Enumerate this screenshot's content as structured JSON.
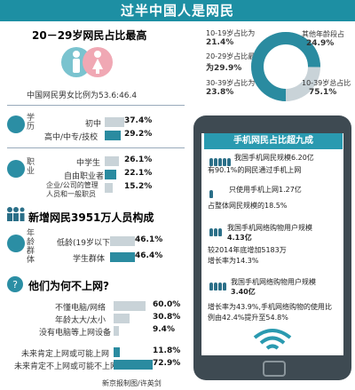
{
  "header": {
    "title": "过半中国人是网民"
  },
  "age_section": {
    "title": "20－29岁网民占比最高",
    "gender_ratio": "中国网民男女比例为53.6:46.4",
    "age_items": [
      {
        "label": "10-19岁占比为",
        "value": "21.4%"
      },
      {
        "label": "20-29岁占比最高",
        "value": "为29.9%"
      },
      {
        "label": "30-39岁占比为",
        "value": "23.8%"
      }
    ],
    "other_label": "其他年龄段占",
    "other_value": "24.9%",
    "range_label": "10-39岁总占比",
    "range_value": "75.1%"
  },
  "education": {
    "category": "学历",
    "items": [
      {
        "label": "初中",
        "value": "37.4%",
        "fraction": 0.374
      },
      {
        "label": "高中/中专/技校",
        "value": "29.2%",
        "fraction": 0.292
      }
    ]
  },
  "occupation": {
    "category": "职业",
    "items": [
      {
        "label": "中学生",
        "value": "26.1%",
        "fraction": 0.261
      },
      {
        "label": "自由职业者",
        "value": "22.1%",
        "fraction": 0.221
      },
      {
        "label": "企业/公司的管理人员和一般职员",
        "value": "15.2%",
        "fraction": 0.152
      }
    ]
  },
  "new_users": {
    "title": "新增网民3951万人员构成",
    "category": "年龄群体",
    "items": [
      {
        "label": "低龄(19岁以下)",
        "value": "46.1%",
        "fraction": 0.461
      },
      {
        "label": "学生群体",
        "value": "46.4%",
        "fraction": 0.464
      }
    ]
  },
  "why_not": {
    "title": "他们为何不上网?",
    "items": [
      {
        "label": "不懂电脑/网络",
        "value": "60.0%",
        "fraction": 0.6
      },
      {
        "label": "年龄太大/太小",
        "value": "30.8%",
        "fraction": 0.308
      },
      {
        "label": "没有电脑等上网设备",
        "value": "9.4%",
        "fraction": 0.094
      },
      {
        "label": "未来肯定上网或可能上网",
        "value": "11.8%",
        "fraction": 0.118
      },
      {
        "label": "未来肯定不上网或可能不上网",
        "value": "72.9%",
        "fraction": 0.729
      }
    ]
  },
  "phone": {
    "title": "手机网民占比超九成",
    "lines": [
      "我国手机网民规模6.20亿",
      "有90.1%的网民通过手机上网",
      "只使用手机上网1.27亿",
      "占整体网民规模的18.5%",
      "我国手机网络购物用户规模",
      "4.13亿",
      "较2014年底增加5183万",
      "增长率为14.3%",
      "我国手机网络购物用户规模",
      "3.40亿",
      "增长率为43.9%,手机网络购物的使用比",
      "例由42.4%提升至54.8%"
    ]
  },
  "credit": "新京报制图/许英剑",
  "colors": {
    "teal": "#1d8fa3",
    "bar_grey": "#c9d3d8",
    "phone_body": "#3e4a52"
  }
}
